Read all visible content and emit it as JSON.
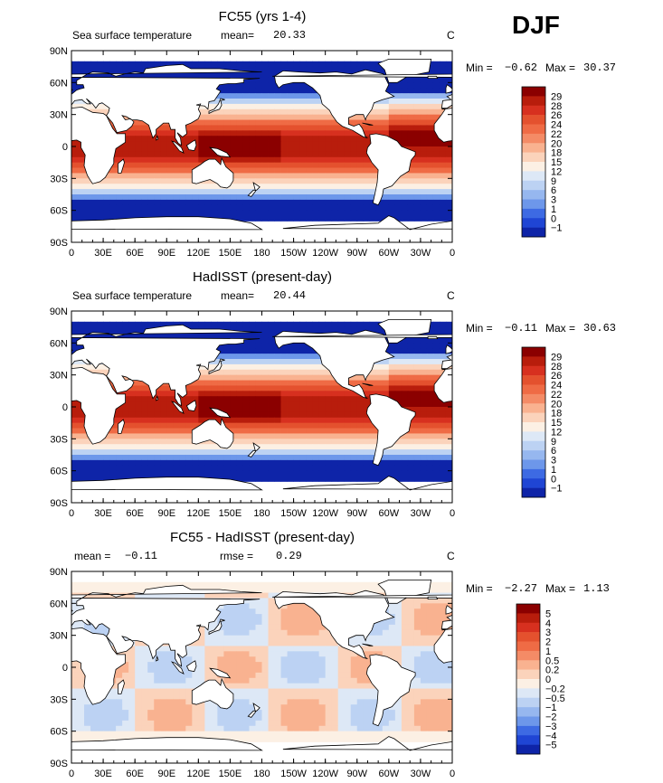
{
  "season": "DJF",
  "panels": [
    {
      "title": "FC55 (yrs 1-4)",
      "left_label": "Sea surface temperature",
      "mean_label": "mean=",
      "mean_value": "20.33",
      "unit": "C",
      "rmse_label": "",
      "rmse_value": "",
      "min_label": "Min =",
      "min_value": "−0.62",
      "max_label": "Max =",
      "max_value": "30.37",
      "colorbar_labels": [
        "29",
        "28",
        "26",
        "24",
        "22",
        "20",
        "18",
        "15",
        "12",
        "9",
        "6",
        "3",
        "1",
        "0",
        "−1"
      ],
      "colorbar_colors": [
        "#8b0000",
        "#b81d0c",
        "#d7301f",
        "#e4512e",
        "#ef6b45",
        "#f48b66",
        "#f9b290",
        "#fbd3bb",
        "#fcf0e4",
        "#dde8f6",
        "#bcd2f3",
        "#96b7ef",
        "#6d97ea",
        "#3d6ae3",
        "#1f45d4",
        "#0e24a8"
      ]
    },
    {
      "title": "HadISST (present-day)",
      "left_label": "Sea surface temperature",
      "mean_label": "mean=",
      "mean_value": "20.44",
      "unit": "C",
      "rmse_label": "",
      "rmse_value": "",
      "min_label": "Min =",
      "min_value": "−0.11",
      "max_label": "Max =",
      "max_value": "30.63",
      "colorbar_labels": [
        "29",
        "28",
        "26",
        "24",
        "22",
        "20",
        "18",
        "15",
        "12",
        "9",
        "6",
        "3",
        "1",
        "0",
        "−1"
      ],
      "colorbar_colors": [
        "#8b0000",
        "#b81d0c",
        "#d7301f",
        "#e4512e",
        "#ef6b45",
        "#f48b66",
        "#f9b290",
        "#fbd3bb",
        "#fcf0e4",
        "#dde8f6",
        "#bcd2f3",
        "#96b7ef",
        "#6d97ea",
        "#3d6ae3",
        "#1f45d4",
        "#0e24a8"
      ]
    },
    {
      "title": "FC55 - HadISST (present-day)",
      "left_label": "",
      "mean_label": "mean =",
      "mean_value": "−0.11",
      "unit": "C",
      "rmse_label": "rmse =",
      "rmse_value": "0.29",
      "min_label": "Min =",
      "min_value": "−2.27",
      "max_label": "Max =",
      "max_value": "1.13",
      "colorbar_labels": [
        "5",
        "4",
        "3",
        "2",
        "1",
        "0.5",
        "0.2",
        "0",
        "−0.2",
        "−0.5",
        "−1",
        "−2",
        "−3",
        "−4",
        "−5"
      ],
      "colorbar_colors": [
        "#8b0000",
        "#b81d0c",
        "#d7301f",
        "#e4512e",
        "#ef6b45",
        "#f48b66",
        "#f9b290",
        "#fbd3bb",
        "#fcf0e4",
        "#dde8f6",
        "#bcd2f3",
        "#96b7ef",
        "#6d97ea",
        "#3d6ae3",
        "#1f45d4",
        "#0e24a8"
      ]
    }
  ],
  "chart_data": [
    {
      "type": "heatmap",
      "title": "FC55 (yrs 1-4)",
      "variable": "Sea surface temperature",
      "unit": "C",
      "mean": 20.33,
      "min": -0.62,
      "max": 30.37,
      "x_ticks": [
        "0",
        "30E",
        "60E",
        "90E",
        "120E",
        "150E",
        "180",
        "150W",
        "120W",
        "90W",
        "60W",
        "30W",
        "0"
      ],
      "y_ticks": [
        "90N",
        "60N",
        "30N",
        "0",
        "30S",
        "60S",
        "90S"
      ],
      "xlim": [
        0,
        360
      ],
      "ylim": [
        -90,
        90
      ],
      "levels": [
        -1,
        0,
        1,
        3,
        6,
        9,
        12,
        15,
        18,
        20,
        22,
        24,
        26,
        28,
        29
      ]
    },
    {
      "type": "heatmap",
      "title": "HadISST (present-day)",
      "variable": "Sea surface temperature",
      "unit": "C",
      "mean": 20.44,
      "min": -0.11,
      "max": 30.63,
      "x_ticks": [
        "0",
        "30E",
        "60E",
        "90E",
        "120E",
        "150E",
        "180",
        "150W",
        "120W",
        "90W",
        "60W",
        "30W",
        "0"
      ],
      "y_ticks": [
        "90N",
        "60N",
        "30N",
        "0",
        "30S",
        "60S",
        "90S"
      ],
      "xlim": [
        0,
        360
      ],
      "ylim": [
        -90,
        90
      ],
      "levels": [
        -1,
        0,
        1,
        3,
        6,
        9,
        12,
        15,
        18,
        20,
        22,
        24,
        26,
        28,
        29
      ]
    },
    {
      "type": "heatmap",
      "title": "FC55 - HadISST (present-day)",
      "unit": "C",
      "mean": -0.11,
      "rmse": 0.29,
      "min": -2.27,
      "max": 1.13,
      "x_ticks": [
        "0",
        "30E",
        "60E",
        "90E",
        "120E",
        "150E",
        "180",
        "150W",
        "120W",
        "90W",
        "60W",
        "30W",
        "0"
      ],
      "y_ticks": [
        "90N",
        "60N",
        "30N",
        "0",
        "30S",
        "60S",
        "90S"
      ],
      "xlim": [
        0,
        360
      ],
      "ylim": [
        -90,
        90
      ],
      "levels": [
        -5,
        -4,
        -3,
        -2,
        -1,
        -0.5,
        -0.2,
        0,
        0.2,
        0.5,
        1,
        2,
        3,
        4,
        5
      ]
    }
  ]
}
